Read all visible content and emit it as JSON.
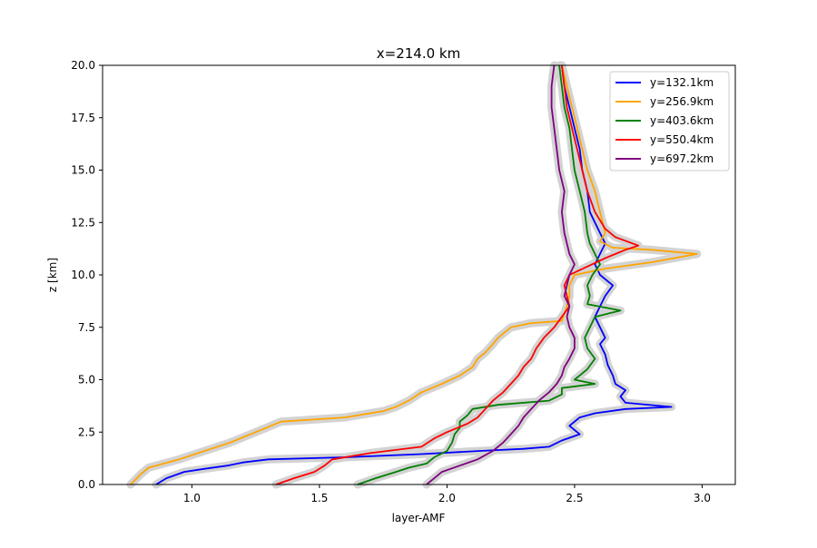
{
  "chart_data": {
    "type": "line",
    "title": "x=214.0 km",
    "xlabel": "layer-AMF",
    "ylabel": "z [km]",
    "xlim": [
      0.65,
      3.13
    ],
    "ylim": [
      0,
      20
    ],
    "x_ticks": [
      "1.0",
      "1.5",
      "2.0",
      "2.5",
      "3.0"
    ],
    "y_ticks": [
      "0.0",
      "2.5",
      "5.0",
      "7.5",
      "10.0",
      "12.5",
      "15.0",
      "17.5",
      "20.0"
    ],
    "grid": false,
    "legend_position": "top-right",
    "uncertainty_band_color": "#d3d3d3",
    "series": [
      {
        "name": "y=132.1km",
        "color": "#0000ff",
        "points": [
          [
            0.86,
            0
          ],
          [
            0.9,
            0.3
          ],
          [
            0.97,
            0.6
          ],
          [
            1.05,
            0.75
          ],
          [
            1.14,
            0.9
          ],
          [
            1.2,
            1.05
          ],
          [
            1.3,
            1.2
          ],
          [
            1.6,
            1.3
          ],
          [
            1.9,
            1.45
          ],
          [
            2.13,
            1.6
          ],
          [
            2.3,
            1.7
          ],
          [
            2.4,
            1.8
          ],
          [
            2.45,
            2.1
          ],
          [
            2.52,
            2.4
          ],
          [
            2.48,
            2.8
          ],
          [
            2.52,
            3.2
          ],
          [
            2.58,
            3.4
          ],
          [
            2.7,
            3.6
          ],
          [
            2.88,
            3.7
          ],
          [
            2.7,
            3.9
          ],
          [
            2.68,
            4.2
          ],
          [
            2.7,
            4.5
          ],
          [
            2.66,
            4.8
          ],
          [
            2.65,
            5.2
          ],
          [
            2.63,
            5.7
          ],
          [
            2.62,
            6.2
          ],
          [
            2.6,
            6.7
          ],
          [
            2.62,
            7.0
          ],
          [
            2.6,
            7.5
          ],
          [
            2.58,
            8.0
          ],
          [
            2.6,
            8.5
          ],
          [
            2.62,
            9.0
          ],
          [
            2.65,
            9.5
          ],
          [
            2.6,
            10.0
          ],
          [
            2.58,
            10.5
          ],
          [
            2.6,
            11.0
          ],
          [
            2.62,
            11.5
          ],
          [
            2.6,
            12.0
          ],
          [
            2.58,
            12.5
          ],
          [
            2.56,
            13.0
          ],
          [
            2.55,
            14.0
          ],
          [
            2.53,
            15.0
          ],
          [
            2.52,
            16.0
          ],
          [
            2.5,
            17.0
          ],
          [
            2.48,
            18.0
          ],
          [
            2.46,
            19.0
          ],
          [
            2.45,
            20.0
          ]
        ]
      },
      {
        "name": "y=256.9km",
        "color": "#ffa500",
        "points": [
          [
            0.76,
            0
          ],
          [
            0.8,
            0.5
          ],
          [
            0.83,
            0.8
          ],
          [
            0.95,
            1.2
          ],
          [
            1.05,
            1.6
          ],
          [
            1.15,
            2.0
          ],
          [
            1.25,
            2.5
          ],
          [
            1.35,
            3.0
          ],
          [
            1.6,
            3.2
          ],
          [
            1.75,
            3.5
          ],
          [
            1.8,
            3.7
          ],
          [
            1.85,
            4.0
          ],
          [
            1.9,
            4.4
          ],
          [
            1.98,
            4.8
          ],
          [
            2.05,
            5.2
          ],
          [
            2.1,
            5.6
          ],
          [
            2.12,
            6.0
          ],
          [
            2.15,
            6.3
          ],
          [
            2.18,
            6.7
          ],
          [
            2.2,
            7.0
          ],
          [
            2.25,
            7.5
          ],
          [
            2.33,
            7.7
          ],
          [
            2.45,
            7.8
          ],
          [
            2.47,
            8.5
          ],
          [
            2.48,
            9.0
          ],
          [
            2.48,
            9.5
          ],
          [
            2.5,
            10.0
          ],
          [
            2.62,
            10.3
          ],
          [
            2.8,
            10.6
          ],
          [
            2.98,
            11.0
          ],
          [
            2.8,
            11.2
          ],
          [
            2.65,
            11.3
          ],
          [
            2.6,
            11.6
          ],
          [
            2.62,
            12.0
          ],
          [
            2.61,
            12.5
          ],
          [
            2.6,
            13.0
          ],
          [
            2.58,
            14.0
          ],
          [
            2.55,
            15.0
          ],
          [
            2.53,
            16.0
          ],
          [
            2.51,
            17.0
          ],
          [
            2.49,
            18.0
          ],
          [
            2.47,
            19.0
          ],
          [
            2.45,
            20.0
          ]
        ]
      },
      {
        "name": "y=403.6km",
        "color": "#008000",
        "points": [
          [
            1.65,
            0
          ],
          [
            1.72,
            0.3
          ],
          [
            1.8,
            0.6
          ],
          [
            1.85,
            0.8
          ],
          [
            1.92,
            1.0
          ],
          [
            1.95,
            1.3
          ],
          [
            2.0,
            1.6
          ],
          [
            2.02,
            2.0
          ],
          [
            2.03,
            2.4
          ],
          [
            2.05,
            2.7
          ],
          [
            2.05,
            3.0
          ],
          [
            2.08,
            3.3
          ],
          [
            2.1,
            3.6
          ],
          [
            2.2,
            3.8
          ],
          [
            2.4,
            4.0
          ],
          [
            2.45,
            4.3
          ],
          [
            2.45,
            4.6
          ],
          [
            2.58,
            4.8
          ],
          [
            2.5,
            5.0
          ],
          [
            2.55,
            5.5
          ],
          [
            2.58,
            6.0
          ],
          [
            2.55,
            6.5
          ],
          [
            2.54,
            7.0
          ],
          [
            2.56,
            7.5
          ],
          [
            2.58,
            8.0
          ],
          [
            2.68,
            8.3
          ],
          [
            2.55,
            8.6
          ],
          [
            2.56,
            9.0
          ],
          [
            2.55,
            9.5
          ],
          [
            2.57,
            10.0
          ],
          [
            2.6,
            10.5
          ],
          [
            2.58,
            11.0
          ],
          [
            2.56,
            11.5
          ],
          [
            2.55,
            12.0
          ],
          [
            2.54,
            13.0
          ],
          [
            2.52,
            14.0
          ],
          [
            2.5,
            15.0
          ],
          [
            2.49,
            16.0
          ],
          [
            2.48,
            17.0
          ],
          [
            2.46,
            18.0
          ],
          [
            2.45,
            19.0
          ],
          [
            2.44,
            20.0
          ]
        ]
      },
      {
        "name": "y=550.4km",
        "color": "#ff0000",
        "points": [
          [
            1.33,
            0
          ],
          [
            1.4,
            0.3
          ],
          [
            1.48,
            0.6
          ],
          [
            1.52,
            0.9
          ],
          [
            1.55,
            1.2
          ],
          [
            1.7,
            1.5
          ],
          [
            1.9,
            1.8
          ],
          [
            1.95,
            2.2
          ],
          [
            2.0,
            2.5
          ],
          [
            2.08,
            2.9
          ],
          [
            2.12,
            3.2
          ],
          [
            2.15,
            3.6
          ],
          [
            2.18,
            4.0
          ],
          [
            2.22,
            4.4
          ],
          [
            2.25,
            4.8
          ],
          [
            2.28,
            5.2
          ],
          [
            2.3,
            5.6
          ],
          [
            2.33,
            6.0
          ],
          [
            2.35,
            6.5
          ],
          [
            2.38,
            7.0
          ],
          [
            2.42,
            7.5
          ],
          [
            2.45,
            8.0
          ],
          [
            2.48,
            8.5
          ],
          [
            2.47,
            9.0
          ],
          [
            2.46,
            9.5
          ],
          [
            2.48,
            10.0
          ],
          [
            2.55,
            10.4
          ],
          [
            2.62,
            10.8
          ],
          [
            2.7,
            11.2
          ],
          [
            2.75,
            11.4
          ],
          [
            2.66,
            11.8
          ],
          [
            2.62,
            12.2
          ],
          [
            2.6,
            12.6
          ],
          [
            2.58,
            13.0
          ],
          [
            2.55,
            14.0
          ],
          [
            2.53,
            15.0
          ],
          [
            2.51,
            16.0
          ],
          [
            2.49,
            17.0
          ],
          [
            2.47,
            18.0
          ],
          [
            2.46,
            19.0
          ],
          [
            2.45,
            20.0
          ]
        ]
      },
      {
        "name": "y=697.2km",
        "color": "#800080",
        "points": [
          [
            1.92,
            0
          ],
          [
            1.95,
            0.3
          ],
          [
            1.98,
            0.6
          ],
          [
            2.05,
            0.9
          ],
          [
            2.12,
            1.2
          ],
          [
            2.18,
            1.6
          ],
          [
            2.22,
            2.0
          ],
          [
            2.25,
            2.4
          ],
          [
            2.28,
            2.8
          ],
          [
            2.3,
            3.2
          ],
          [
            2.33,
            3.6
          ],
          [
            2.36,
            4.0
          ],
          [
            2.4,
            4.4
          ],
          [
            2.43,
            4.8
          ],
          [
            2.45,
            5.2
          ],
          [
            2.46,
            5.6
          ],
          [
            2.48,
            6.0
          ],
          [
            2.5,
            6.5
          ],
          [
            2.5,
            7.0
          ],
          [
            2.48,
            7.5
          ],
          [
            2.47,
            8.0
          ],
          [
            2.48,
            8.5
          ],
          [
            2.46,
            9.0
          ],
          [
            2.47,
            9.5
          ],
          [
            2.48,
            10.0
          ],
          [
            2.5,
            10.5
          ],
          [
            2.48,
            11.0
          ],
          [
            2.47,
            11.5
          ],
          [
            2.46,
            12.0
          ],
          [
            2.45,
            13.0
          ],
          [
            2.46,
            14.0
          ],
          [
            2.44,
            15.0
          ],
          [
            2.43,
            16.0
          ],
          [
            2.42,
            17.0
          ],
          [
            2.41,
            18.0
          ],
          [
            2.41,
            19.0
          ],
          [
            2.42,
            20.0
          ]
        ]
      }
    ]
  }
}
